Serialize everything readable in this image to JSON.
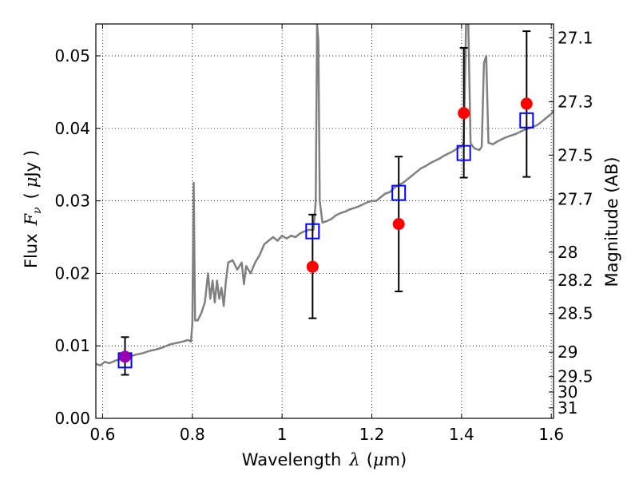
{
  "chart_data": {
    "type": "scatter",
    "title": "",
    "xlabel": {
      "text": "Wavelength",
      "symbol": "λ",
      "unit_open": "(",
      "unit_symbol": "μ",
      "unit_rest": "m)"
    },
    "ylabel": {
      "text": "Flux",
      "symbol": "F",
      "subscript": "ν",
      "unit_open": "(",
      "unit_symbol": "μ",
      "unit_rest": "Jy )"
    },
    "y2label": "Magnitude (AB)",
    "xlim": [
      0.585,
      1.605
    ],
    "ylim": [
      0.0,
      0.0544
    ],
    "grid": true,
    "grid_style": "dotted",
    "x_ticks": [
      {
        "value": 0.6,
        "label": "0.6"
      },
      {
        "value": 0.8,
        "label": "0.8"
      },
      {
        "value": 1.0,
        "label": "1"
      },
      {
        "value": 1.2,
        "label": "1.2"
      },
      {
        "value": 1.4,
        "label": "1.4"
      },
      {
        "value": 1.6,
        "label": "1.6"
      }
    ],
    "y_ticks": [
      {
        "value": 0.0,
        "label": "0.00"
      },
      {
        "value": 0.01,
        "label": "0.01"
      },
      {
        "value": 0.02,
        "label": "0.02"
      },
      {
        "value": 0.03,
        "label": "0.03"
      },
      {
        "value": 0.04,
        "label": "0.04"
      },
      {
        "value": 0.05,
        "label": "0.05"
      }
    ],
    "y2_ticks": [
      {
        "value": 27.1,
        "label": "27.1"
      },
      {
        "value": 27.3,
        "label": "27.3"
      },
      {
        "value": 27.5,
        "label": "27.5"
      },
      {
        "value": 27.7,
        "label": "27.7"
      },
      {
        "value": 28.0,
        "label": "28"
      },
      {
        "value": 28.2,
        "label": "28.2"
      },
      {
        "value": 28.5,
        "label": "28.5"
      },
      {
        "value": 29.0,
        "label": "29"
      },
      {
        "value": 29.5,
        "label": "29.5"
      },
      {
        "value": 30.0,
        "label": "30"
      },
      {
        "value": 31.0,
        "label": "31"
      }
    ],
    "series": [
      {
        "kind": "line",
        "color": "#808080",
        "x": [
          0.585,
          0.595,
          0.605,
          0.615,
          0.63,
          0.645,
          0.66,
          0.675,
          0.69,
          0.705,
          0.72,
          0.735,
          0.75,
          0.765,
          0.78,
          0.79,
          0.797,
          0.8,
          0.803,
          0.806,
          0.812,
          0.82,
          0.828,
          0.835,
          0.84,
          0.845,
          0.85,
          0.855,
          0.86,
          0.865,
          0.87,
          0.875,
          0.88,
          0.89,
          0.9,
          0.91,
          0.915,
          0.92,
          0.93,
          0.94,
          0.95,
          0.96,
          0.97,
          0.98,
          0.99,
          1.0,
          1.01,
          1.02,
          1.03,
          1.04,
          1.05,
          1.06,
          1.07,
          1.075,
          1.078,
          1.081,
          1.084,
          1.09,
          1.1,
          1.11,
          1.12,
          1.13,
          1.14,
          1.15,
          1.16,
          1.17,
          1.18,
          1.19,
          1.2,
          1.21,
          1.22,
          1.23,
          1.24,
          1.25,
          1.26,
          1.27,
          1.28,
          1.29,
          1.3,
          1.31,
          1.32,
          1.33,
          1.34,
          1.35,
          1.36,
          1.37,
          1.38,
          1.39,
          1.4,
          1.405,
          1.41,
          1.415,
          1.42,
          1.425,
          1.43,
          1.44,
          1.445,
          1.45,
          1.455,
          1.46,
          1.47,
          1.48,
          1.49,
          1.5,
          1.51,
          1.52,
          1.53,
          1.54,
          1.55,
          1.56,
          1.57,
          1.58,
          1.59,
          1.6,
          1.605
        ],
        "y": [
          0.0075,
          0.0073,
          0.0078,
          0.0076,
          0.008,
          0.0082,
          0.0085,
          0.0088,
          0.009,
          0.0093,
          0.0095,
          0.0098,
          0.0102,
          0.0104,
          0.0106,
          0.0108,
          0.0106,
          0.013,
          0.0325,
          0.0135,
          0.0135,
          0.0145,
          0.016,
          0.02,
          0.0165,
          0.019,
          0.016,
          0.019,
          0.0165,
          0.018,
          0.0155,
          0.019,
          0.0215,
          0.0218,
          0.0205,
          0.0215,
          0.0185,
          0.021,
          0.02,
          0.0215,
          0.0225,
          0.024,
          0.0245,
          0.025,
          0.0245,
          0.0252,
          0.0248,
          0.0252,
          0.025,
          0.0255,
          0.0258,
          0.026,
          0.026,
          0.03,
          0.0544,
          0.052,
          0.03,
          0.027,
          0.0272,
          0.0275,
          0.028,
          0.0283,
          0.0285,
          0.0288,
          0.029,
          0.0292,
          0.0295,
          0.0298,
          0.03,
          0.03,
          0.0305,
          0.031,
          0.0312,
          0.0318,
          0.0322,
          0.0325,
          0.033,
          0.0335,
          0.034,
          0.0345,
          0.0348,
          0.0352,
          0.0355,
          0.0358,
          0.0362,
          0.0365,
          0.0368,
          0.0372,
          0.0375,
          0.038,
          0.0544,
          0.0544,
          0.038,
          0.0375,
          0.0372,
          0.037,
          0.0375,
          0.049,
          0.05,
          0.038,
          0.0378,
          0.0382,
          0.0385,
          0.0388,
          0.039,
          0.0392,
          0.0395,
          0.0398,
          0.04,
          0.0402,
          0.0405,
          0.041,
          0.0415,
          0.042,
          0.0425
        ]
      },
      {
        "kind": "points",
        "marker": "circle",
        "color": "#ff0000",
        "x": [
          1.068,
          1.26,
          1.405,
          1.545
        ],
        "y": [
          0.0209,
          0.0268,
          0.0421,
          0.0434
        ],
        "yerr_low": [
          0.0071,
          0.0093,
          0.0089,
          0.0101
        ],
        "yerr_high": [
          0.0072,
          0.0093,
          0.009,
          0.01
        ]
      },
      {
        "kind": "points",
        "marker": "square",
        "color": "#0000ff",
        "x": [
          0.65,
          1.068,
          1.26,
          1.405,
          1.545
        ],
        "y": [
          0.008,
          0.0258,
          0.0311,
          0.0366,
          0.0411
        ]
      },
      {
        "kind": "points",
        "marker": "circle",
        "color": "#9b00b0",
        "x": [
          0.65
        ],
        "y": [
          0.0085
        ],
        "yerr_low": [
          0.0025
        ],
        "yerr_high": [
          0.0027
        ]
      }
    ]
  }
}
